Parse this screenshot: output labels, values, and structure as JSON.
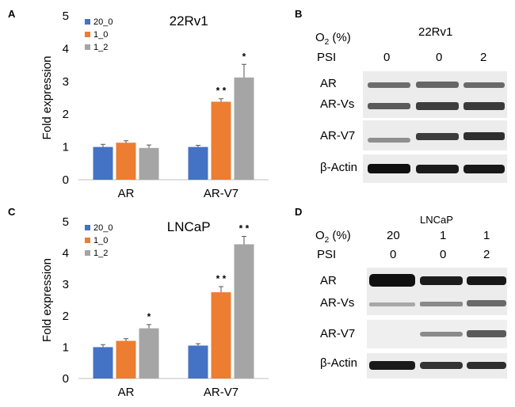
{
  "panels": {
    "a": {
      "letter": "A",
      "chart_data": {
        "type": "bar",
        "title": "22Rv1",
        "xlabel": "",
        "ylabel": "Fold expression",
        "ylim": [
          0,
          5
        ],
        "yticks": [
          "0",
          "1",
          "2",
          "3",
          "4",
          "5"
        ],
        "categories": [
          "AR",
          "AR-V7"
        ],
        "series": [
          {
            "name": "20_0",
            "color": "#4472c4",
            "values": [
              1.0,
              1.0
            ],
            "errors": [
              0.08,
              0.05
            ]
          },
          {
            "name": "1_0",
            "color": "#ed7d31",
            "values": [
              1.13,
              2.38
            ],
            "errors": [
              0.06,
              0.09
            ]
          },
          {
            "name": "1_2",
            "color": "#a5a5a5",
            "values": [
              0.97,
              3.12
            ],
            "errors": [
              0.09,
              0.4
            ]
          }
        ],
        "significance": [
          {
            "category": 1,
            "series": 1,
            "label": "**"
          },
          {
            "category": 1,
            "series": 2,
            "label": "*"
          }
        ],
        "grid": false,
        "legend_position": "top-left"
      }
    },
    "b": {
      "letter": "B",
      "header_o2_label": "O",
      "header_o2_sub": "2",
      "header_o2_unit": " (%)",
      "cell_line": "22Rv1",
      "psi_label": "PSI",
      "psi_values": [
        "0",
        "0",
        "2"
      ],
      "bands": [
        {
          "label": "AR"
        },
        {
          "label": "AR-Vs"
        },
        {
          "label": "AR-V7"
        },
        {
          "label": "β-Actin"
        }
      ]
    },
    "c": {
      "letter": "C",
      "chart_data": {
        "type": "bar",
        "title": "LNCaP",
        "xlabel": "",
        "ylabel": "Fold expression",
        "ylim": [
          0,
          5
        ],
        "yticks": [
          "0",
          "1",
          "2",
          "3",
          "4",
          "5"
        ],
        "categories": [
          "AR",
          "AR-V7"
        ],
        "series": [
          {
            "name": "20_0",
            "color": "#4472c4",
            "values": [
              1.0,
              1.05
            ],
            "errors": [
              0.08,
              0.06
            ]
          },
          {
            "name": "1_0",
            "color": "#ed7d31",
            "values": [
              1.2,
              2.75
            ],
            "errors": [
              0.07,
              0.18
            ]
          },
          {
            "name": "1_2",
            "color": "#a5a5a5",
            "values": [
              1.6,
              4.28
            ],
            "errors": [
              0.12,
              0.25
            ]
          }
        ],
        "significance": [
          {
            "category": 0,
            "series": 2,
            "label": "*"
          },
          {
            "category": 1,
            "series": 1,
            "label": "**"
          },
          {
            "category": 1,
            "series": 2,
            "label": "**"
          }
        ],
        "grid": false,
        "legend_position": "top-left"
      }
    },
    "d": {
      "letter": "D",
      "cell_line": "LNCaP",
      "header_o2_label": "O",
      "header_o2_sub": "2",
      "header_o2_unit": " (%)",
      "o2_values": [
        "20",
        "1",
        "1"
      ],
      "psi_label": "PSI",
      "psi_values": [
        "0",
        "0",
        "2"
      ],
      "bands": [
        {
          "label": "AR"
        },
        {
          "label": "AR-Vs"
        },
        {
          "label": "AR-V7"
        },
        {
          "label": "β-Actin"
        }
      ]
    }
  }
}
